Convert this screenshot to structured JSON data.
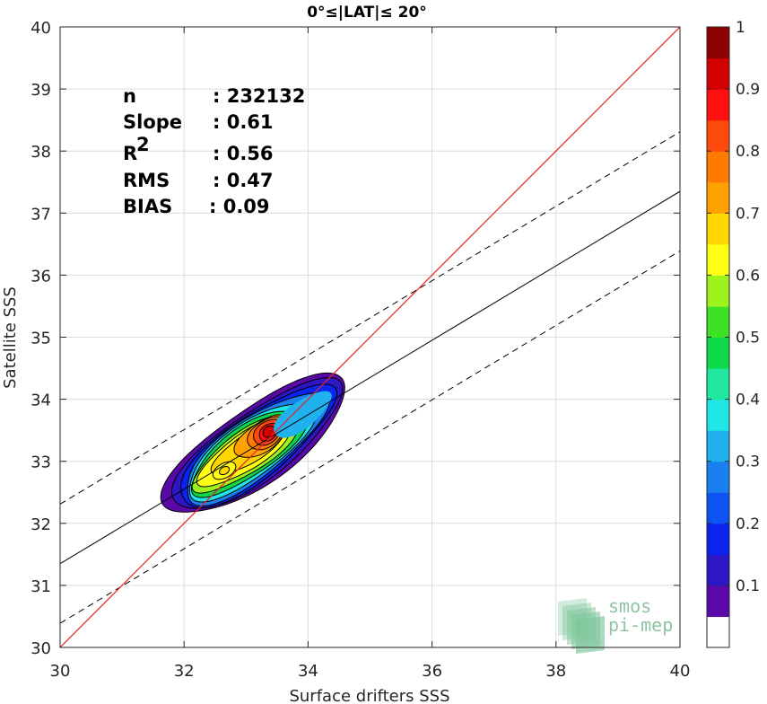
{
  "chart_data": {
    "type": "contour",
    "title": "0°≤|LAT|≤ 20°",
    "xlabel": "Surface drifters SSS",
    "ylabel": "Satellite SSS",
    "xlim": [
      30,
      40
    ],
    "ylim": [
      30,
      40
    ],
    "xticks": [
      "30",
      "32",
      "34",
      "36",
      "38",
      "40"
    ],
    "yticks": [
      "30",
      "31",
      "32",
      "33",
      "34",
      "35",
      "36",
      "37",
      "38",
      "39",
      "40"
    ],
    "grid": true,
    "stats": [
      {
        "label": "n",
        "value": ": 232132"
      },
      {
        "label": "Slope",
        "value": ": 0.61"
      },
      {
        "label": "R",
        "sup": "2",
        "value": ": 0.56"
      },
      {
        "label": "RMS",
        "value": ": 0.47"
      },
      {
        "label": "BIAS",
        "value": ": 0.09"
      }
    ],
    "lines": {
      "identity": {
        "slope": 1,
        "intercept": 0,
        "color": "#e8242a"
      },
      "fit": {
        "slope": 0.6,
        "intercept": 13.35,
        "color": "#000000"
      },
      "fit_offset": 0.96
    },
    "density": {
      "center_x": 33.35,
      "center_y": 33.45,
      "along_axis_deg": 35,
      "secondary_peak": {
        "x": 32.65,
        "y": 32.85
      }
    },
    "colorbar": {
      "min": 0,
      "max": 1,
      "ticks": [
        "0.1",
        "0.2",
        "0.3",
        "0.4",
        "0.5",
        "0.6",
        "0.7",
        "0.8",
        "0.9",
        "1"
      ],
      "levels": [
        "#ffffff",
        "#5a09a8",
        "#2d16c4",
        "#0a23ee",
        "#0f52f4",
        "#1a80ef",
        "#1fb2ee",
        "#20e6e6",
        "#21e8a0",
        "#0cd94a",
        "#3fe126",
        "#9ff31c",
        "#ffff16",
        "#ffd700",
        "#ffa100",
        "#ff7a00",
        "#ff4a0e",
        "#ff0f10",
        "#d40000",
        "#8b0000"
      ]
    },
    "logo": [
      "smos",
      "pi-mep"
    ]
  }
}
